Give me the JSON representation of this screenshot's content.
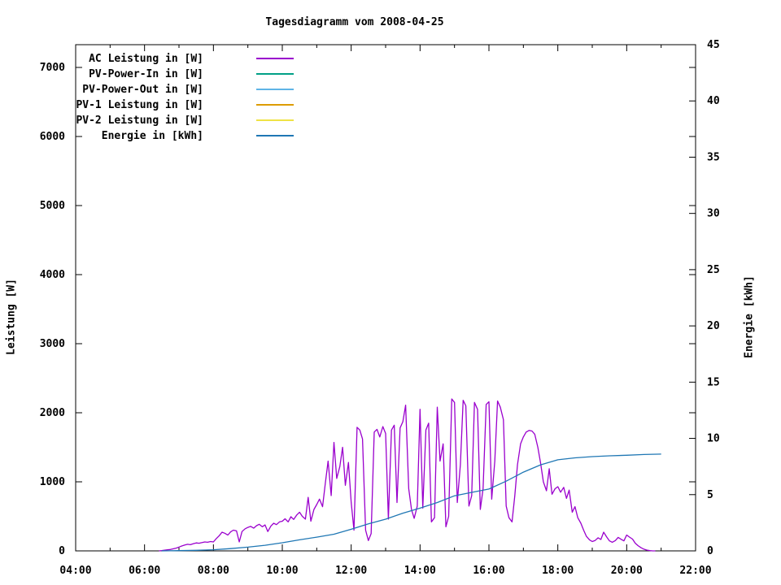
{
  "title": "Tagesdiagramm vom 2008-04-25",
  "background_color": "#ffffff",
  "axis_color": "#000000",
  "axes": {
    "left": {
      "label": "Leistung [W]",
      "range": [
        0,
        7000
      ],
      "tick_labels": [
        "0",
        "1000",
        "2000",
        "3000",
        "4000",
        "5000",
        "6000",
        "7000"
      ],
      "tick_values": [
        0,
        1000,
        2000,
        3000,
        4000,
        5000,
        6000,
        7000
      ]
    },
    "right": {
      "label": "Energie [kWh]",
      "range": [
        0,
        45
      ],
      "tick_labels": [
        "0",
        "5",
        "10",
        "15",
        "20",
        "25",
        "30",
        "35",
        "40",
        "45"
      ],
      "tick_values": [
        0,
        5,
        10,
        15,
        20,
        25,
        30,
        35,
        40,
        45
      ]
    },
    "x": {
      "range_hours": [
        4,
        22
      ],
      "major_tick_labels": [
        "04:00",
        "06:00",
        "08:00",
        "10:00",
        "12:00",
        "14:00",
        "16:00",
        "18:00",
        "20:00",
        "22:00"
      ],
      "major_tick_hours": [
        4,
        6,
        8,
        10,
        12,
        14,
        16,
        18,
        20,
        22
      ],
      "minor_tick_hours": [
        5,
        7,
        9,
        11,
        13,
        15,
        17,
        19,
        21
      ]
    }
  },
  "chart_data": {
    "type": "line",
    "title": "Tagesdiagramm vom 2008-04-25",
    "xlabel": "",
    "ylabel_left": "Leistung [W]",
    "ylabel_right": "Energie [kWh]",
    "x_unit": "time (hours, decimal)",
    "ylim_left": [
      0,
      7000
    ],
    "ylim_right": [
      0,
      45
    ],
    "xlim": [
      4,
      22
    ],
    "grid": false,
    "legend_position": "top-left-inside",
    "series": [
      {
        "name": "AC Leistung in [W]",
        "axis": "left",
        "color": "#9a00cd",
        "points": [
          [
            6.42,
            0
          ],
          [
            6.5,
            5
          ],
          [
            6.58,
            10
          ],
          [
            6.67,
            15
          ],
          [
            6.75,
            20
          ],
          [
            6.83,
            30
          ],
          [
            6.92,
            40
          ],
          [
            7.0,
            55
          ],
          [
            7.08,
            70
          ],
          [
            7.17,
            85
          ],
          [
            7.25,
            95
          ],
          [
            7.33,
            90
          ],
          [
            7.42,
            105
          ],
          [
            7.5,
            115
          ],
          [
            7.58,
            110
          ],
          [
            7.67,
            120
          ],
          [
            7.75,
            130
          ],
          [
            7.83,
            125
          ],
          [
            7.92,
            135
          ],
          [
            8.0,
            130
          ],
          [
            8.08,
            175
          ],
          [
            8.17,
            220
          ],
          [
            8.25,
            270
          ],
          [
            8.33,
            255
          ],
          [
            8.42,
            230
          ],
          [
            8.5,
            275
          ],
          [
            8.58,
            300
          ],
          [
            8.67,
            290
          ],
          [
            8.75,
            130
          ],
          [
            8.83,
            280
          ],
          [
            8.92,
            320
          ],
          [
            9.0,
            340
          ],
          [
            9.08,
            355
          ],
          [
            9.17,
            330
          ],
          [
            9.25,
            365
          ],
          [
            9.33,
            385
          ],
          [
            9.42,
            350
          ],
          [
            9.5,
            375
          ],
          [
            9.58,
            280
          ],
          [
            9.67,
            360
          ],
          [
            9.75,
            400
          ],
          [
            9.83,
            380
          ],
          [
            9.92,
            420
          ],
          [
            10.0,
            430
          ],
          [
            10.08,
            465
          ],
          [
            10.17,
            420
          ],
          [
            10.25,
            495
          ],
          [
            10.33,
            455
          ],
          [
            10.42,
            520
          ],
          [
            10.5,
            560
          ],
          [
            10.58,
            500
          ],
          [
            10.67,
            460
          ],
          [
            10.75,
            775
          ],
          [
            10.83,
            430
          ],
          [
            10.92,
            600
          ],
          [
            11.0,
            670
          ],
          [
            11.08,
            750
          ],
          [
            11.17,
            640
          ],
          [
            11.25,
            980
          ],
          [
            11.33,
            1300
          ],
          [
            11.42,
            800
          ],
          [
            11.5,
            1570
          ],
          [
            11.58,
            1050
          ],
          [
            11.67,
            1220
          ],
          [
            11.75,
            1500
          ],
          [
            11.83,
            950
          ],
          [
            11.92,
            1280
          ],
          [
            12.0,
            700
          ],
          [
            12.08,
            300
          ],
          [
            12.17,
            1790
          ],
          [
            12.25,
            1750
          ],
          [
            12.33,
            1620
          ],
          [
            12.42,
            300
          ],
          [
            12.5,
            150
          ],
          [
            12.58,
            250
          ],
          [
            12.67,
            1720
          ],
          [
            12.75,
            1760
          ],
          [
            12.83,
            1650
          ],
          [
            12.92,
            1800
          ],
          [
            13.0,
            1700
          ],
          [
            13.08,
            460
          ],
          [
            13.17,
            1750
          ],
          [
            13.25,
            1820
          ],
          [
            13.33,
            700
          ],
          [
            13.42,
            1780
          ],
          [
            13.5,
            1870
          ],
          [
            13.58,
            2110
          ],
          [
            13.67,
            900
          ],
          [
            13.75,
            600
          ],
          [
            13.83,
            470
          ],
          [
            13.92,
            650
          ],
          [
            14.0,
            2050
          ],
          [
            14.08,
            620
          ],
          [
            14.17,
            1750
          ],
          [
            14.25,
            1850
          ],
          [
            14.33,
            420
          ],
          [
            14.42,
            480
          ],
          [
            14.5,
            2080
          ],
          [
            14.58,
            1300
          ],
          [
            14.67,
            1550
          ],
          [
            14.75,
            350
          ],
          [
            14.83,
            500
          ],
          [
            14.92,
            2200
          ],
          [
            15.0,
            2150
          ],
          [
            15.08,
            700
          ],
          [
            15.17,
            1250
          ],
          [
            15.25,
            2180
          ],
          [
            15.33,
            2100
          ],
          [
            15.42,
            650
          ],
          [
            15.5,
            800
          ],
          [
            15.58,
            2150
          ],
          [
            15.67,
            2050
          ],
          [
            15.75,
            600
          ],
          [
            15.83,
            900
          ],
          [
            15.92,
            2120
          ],
          [
            16.0,
            2160
          ],
          [
            16.08,
            750
          ],
          [
            16.17,
            1300
          ],
          [
            16.25,
            2170
          ],
          [
            16.33,
            2080
          ],
          [
            16.42,
            1900
          ],
          [
            16.5,
            650
          ],
          [
            16.58,
            480
          ],
          [
            16.67,
            420
          ],
          [
            16.75,
            800
          ],
          [
            16.83,
            1250
          ],
          [
            16.92,
            1550
          ],
          [
            17.0,
            1650
          ],
          [
            17.08,
            1720
          ],
          [
            17.17,
            1745
          ],
          [
            17.25,
            1735
          ],
          [
            17.33,
            1690
          ],
          [
            17.42,
            1500
          ],
          [
            17.5,
            1270
          ],
          [
            17.58,
            1000
          ],
          [
            17.67,
            870
          ],
          [
            17.75,
            1190
          ],
          [
            17.83,
            820
          ],
          [
            17.92,
            900
          ],
          [
            18.0,
            930
          ],
          [
            18.08,
            850
          ],
          [
            18.17,
            920
          ],
          [
            18.25,
            760
          ],
          [
            18.33,
            880
          ],
          [
            18.42,
            560
          ],
          [
            18.5,
            640
          ],
          [
            18.58,
            480
          ],
          [
            18.67,
            400
          ],
          [
            18.75,
            300
          ],
          [
            18.83,
            210
          ],
          [
            18.92,
            160
          ],
          [
            19.0,
            135
          ],
          [
            19.08,
            150
          ],
          [
            19.17,
            190
          ],
          [
            19.25,
            165
          ],
          [
            19.33,
            270
          ],
          [
            19.42,
            200
          ],
          [
            19.5,
            145
          ],
          [
            19.58,
            125
          ],
          [
            19.67,
            150
          ],
          [
            19.75,
            195
          ],
          [
            19.83,
            170
          ],
          [
            19.92,
            145
          ],
          [
            20.0,
            230
          ],
          [
            20.08,
            200
          ],
          [
            20.17,
            170
          ],
          [
            20.25,
            110
          ],
          [
            20.33,
            75
          ],
          [
            20.42,
            45
          ],
          [
            20.5,
            25
          ],
          [
            20.58,
            12
          ],
          [
            20.67,
            5
          ],
          [
            20.75,
            0
          ],
          [
            20.83,
            0
          ]
        ]
      },
      {
        "name": "PV-Power-In in [W]",
        "axis": "left",
        "color": "#00a086",
        "points": []
      },
      {
        "name": "PV-Power-Out in [W]",
        "axis": "left",
        "color": "#5fb4e6",
        "points": []
      },
      {
        "name": "PV-1 Leistung in [W]",
        "axis": "left",
        "color": "#dd9c00",
        "points": []
      },
      {
        "name": "PV-2 Leistung in [W]",
        "axis": "left",
        "color": "#efe345",
        "points": []
      },
      {
        "name": "Energie in [kWh]",
        "axis": "right",
        "color": "#1f77b4",
        "points": [
          [
            6.5,
            0
          ],
          [
            7.0,
            0.02
          ],
          [
            7.5,
            0.05
          ],
          [
            8.0,
            0.1
          ],
          [
            8.5,
            0.2
          ],
          [
            9.0,
            0.33
          ],
          [
            9.5,
            0.5
          ],
          [
            10.0,
            0.72
          ],
          [
            10.5,
            0.98
          ],
          [
            11.0,
            1.22
          ],
          [
            11.5,
            1.48
          ],
          [
            12.0,
            1.92
          ],
          [
            12.5,
            2.4
          ],
          [
            13.0,
            2.82
          ],
          [
            13.5,
            3.35
          ],
          [
            14.0,
            3.8
          ],
          [
            14.5,
            4.3
          ],
          [
            15.0,
            4.9
          ],
          [
            15.5,
            5.2
          ],
          [
            16.0,
            5.5
          ],
          [
            16.5,
            6.2
          ],
          [
            17.0,
            7.0
          ],
          [
            17.5,
            7.65
          ],
          [
            18.0,
            8.1
          ],
          [
            18.5,
            8.27
          ],
          [
            19.0,
            8.38
          ],
          [
            19.5,
            8.45
          ],
          [
            20.0,
            8.5
          ],
          [
            20.5,
            8.57
          ],
          [
            21.0,
            8.6
          ]
        ]
      }
    ]
  }
}
